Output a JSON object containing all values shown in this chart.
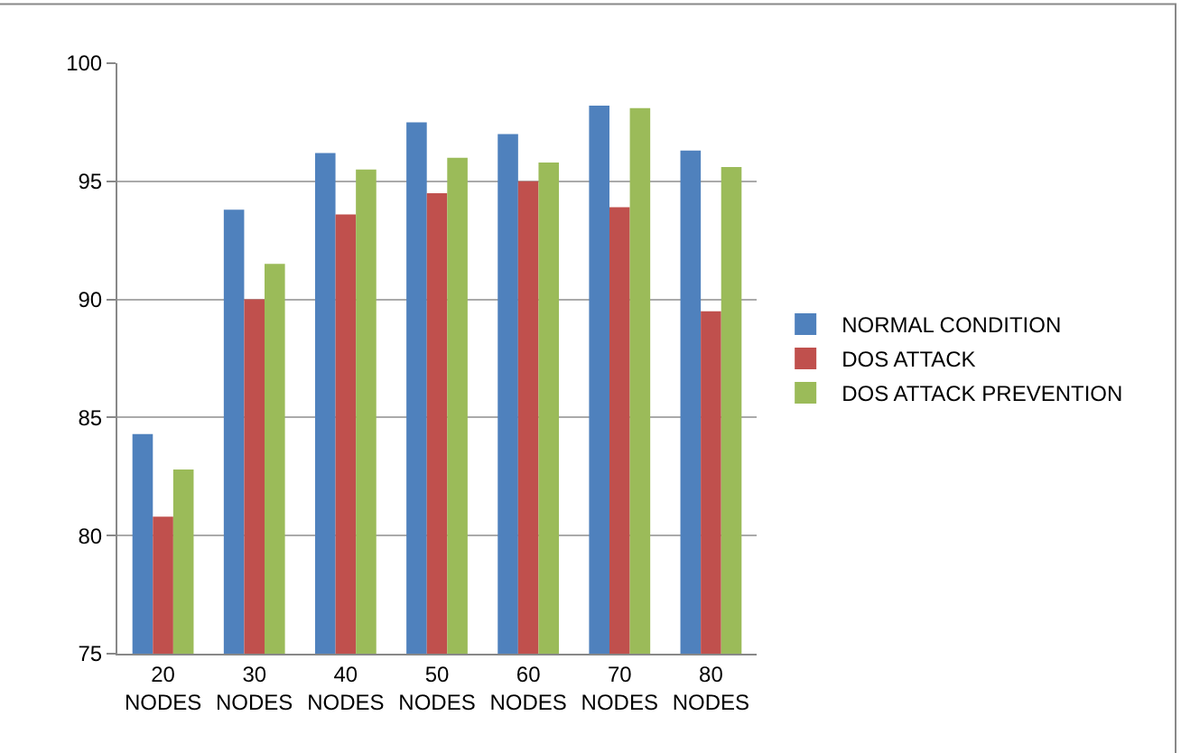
{
  "chart_data": {
    "type": "bar",
    "categories": [
      "20 NODES",
      "30 NODES",
      "40 NODES",
      "50 NODES",
      "60 NODES",
      "70 NODES",
      "80 NODES"
    ],
    "series": [
      {
        "name": "NORMAL CONDITION",
        "color": "#4f81bd",
        "values": [
          84.3,
          93.8,
          96.2,
          97.5,
          97.0,
          98.2,
          96.3
        ]
      },
      {
        "name": "DOS ATTACK",
        "color": "#c0504d",
        "values": [
          80.8,
          90.0,
          93.6,
          94.5,
          95.0,
          93.9,
          89.5
        ]
      },
      {
        "name": "DOS ATTACK PREVENTION",
        "color": "#9bbb59",
        "values": [
          82.8,
          91.5,
          95.5,
          96.0,
          95.8,
          98.1,
          95.6
        ]
      }
    ],
    "ylim": [
      75,
      100
    ],
    "yticks": [
      75,
      80,
      85,
      90,
      95,
      100
    ],
    "grid": "y",
    "legend": "right"
  }
}
